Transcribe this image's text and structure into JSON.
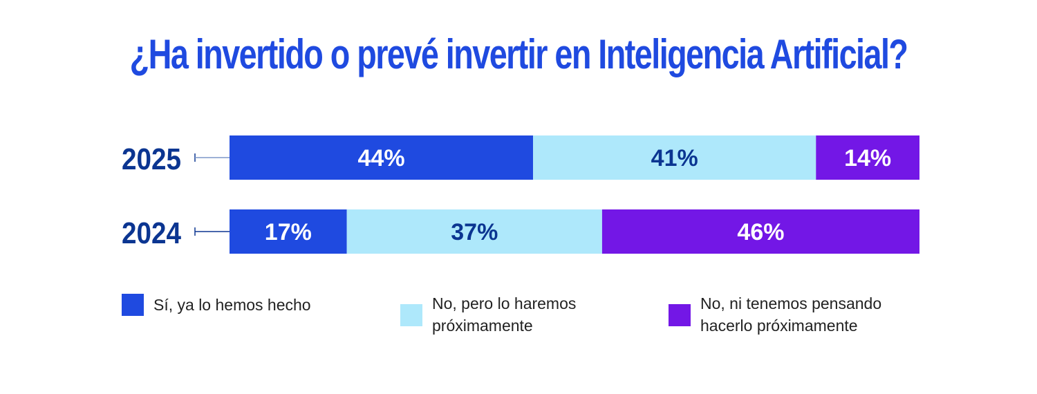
{
  "chart_data": {
    "type": "bar",
    "orientation": "horizontal",
    "stacked": true,
    "title": "¿Ha invertido o prevé invertir en Inteligencia Artificial?",
    "categories": [
      "2025",
      "2024"
    ],
    "series": [
      {
        "name": "Sí, ya lo hemos hecho",
        "color": "#1f4ae0",
        "label_color": "#ffffff",
        "values": [
          44,
          17
        ],
        "labels": [
          "44%",
          "17%"
        ]
      },
      {
        "name": "No, pero lo haremos próximamente",
        "color": "#aee8fb",
        "label_color": "#0b3591",
        "values": [
          41,
          37
        ],
        "labels": [
          "41%",
          "37%"
        ]
      },
      {
        "name": "No, ni tenemos pensando hacerlo próximamente",
        "color": "#7317e6",
        "label_color": "#ffffff",
        "values": [
          14,
          46
        ],
        "labels": [
          "14%",
          "46%"
        ]
      }
    ],
    "xlabel": "",
    "ylabel": "",
    "xlim": [
      0,
      100
    ],
    "grid": false,
    "legend_position": "bottom"
  },
  "legend": [
    {
      "line1": "Sí, ya lo hemos hecho",
      "line2": ""
    },
    {
      "line1": "No, pero lo haremos",
      "line2": "próximamente"
    },
    {
      "line1": "No, ni tenemos pensando",
      "line2": "hacerlo próximamente"
    }
  ]
}
